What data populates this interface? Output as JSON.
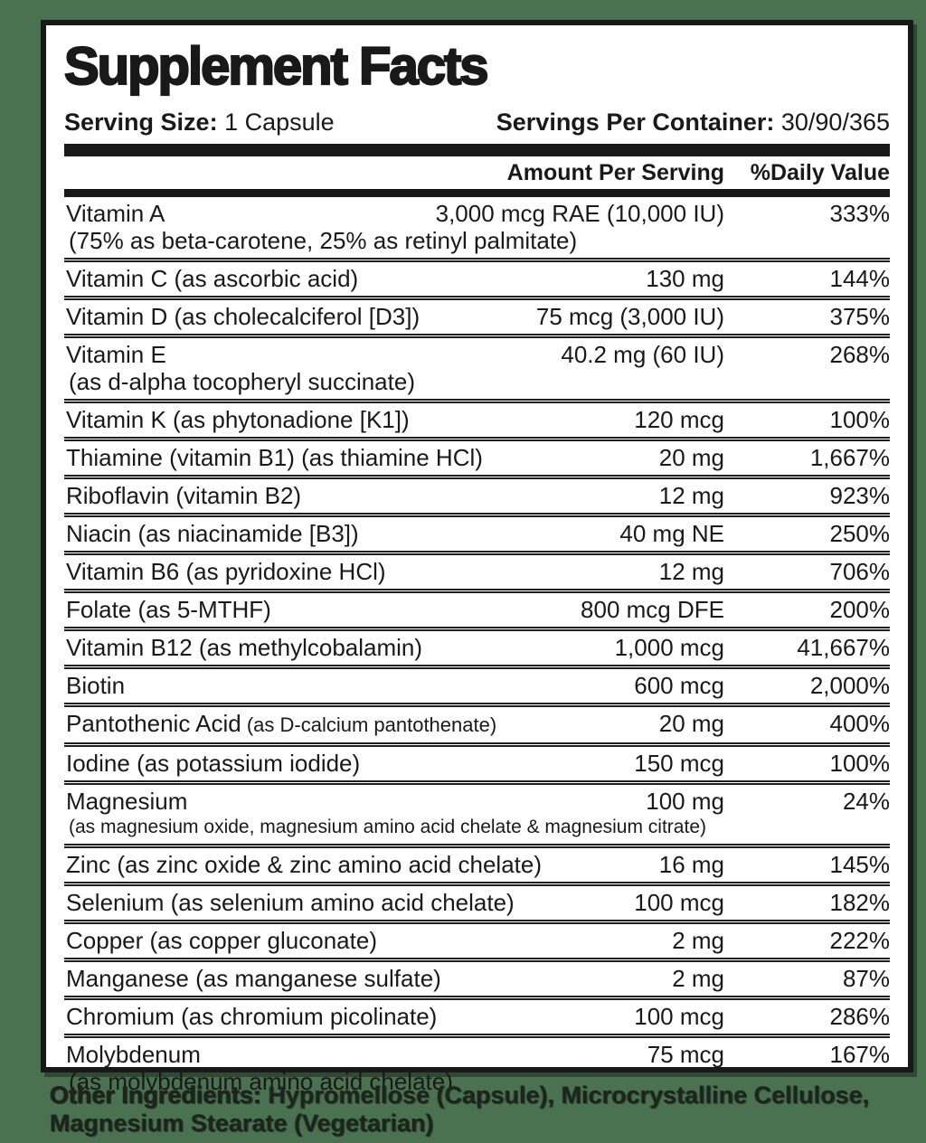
{
  "page": {
    "background_color": "#4a7251",
    "panel_color": "#ffffff",
    "text_color": "#191919"
  },
  "panel": {
    "title": "Supplement Facts",
    "serving_size_label": "Serving Size:",
    "serving_size_value": "1 Capsule",
    "servings_label": "Servings Per Container:",
    "servings_value": "30/90/365",
    "col_amount_header": "Amount Per Serving",
    "col_dv_header": "%Daily Value",
    "rows": [
      {
        "name": "Vitamin A",
        "amount": "3,000 mcg RAE (10,000 IU)",
        "dv": "333%",
        "note": "(75% as beta-carotene, 25% as retinyl palmitate)"
      },
      {
        "name": "Vitamin C (as ascorbic acid)",
        "amount": "130 mg",
        "dv": "144%"
      },
      {
        "name": "Vitamin D (as cholecalciferol [D3])",
        "amount": "75 mcg (3,000 IU)",
        "dv": "375%"
      },
      {
        "name": "Vitamin E",
        "amount": "40.2 mg (60 IU)",
        "dv": "268%",
        "note": "(as d-alpha tocopheryl succinate)"
      },
      {
        "name": "Vitamin K (as phytonadione [K1])",
        "amount": "120 mcg",
        "dv": "100%"
      },
      {
        "name": "Thiamine (vitamin B1) (as thiamine HCl)",
        "amount": "20 mg",
        "dv": "1,667%"
      },
      {
        "name": "Riboflavin (vitamin B2)",
        "amount": "12 mg",
        "dv": "923%"
      },
      {
        "name": "Niacin (as niacinamide [B3])",
        "amount": "40 mg NE",
        "dv": "250%"
      },
      {
        "name": "Vitamin B6 (as pyridoxine HCl)",
        "amount": "12 mg",
        "dv": "706%"
      },
      {
        "name": "Folate (as 5-MTHF)",
        "amount": "800 mcg DFE",
        "dv": "200%"
      },
      {
        "name": "Vitamin B12 (as methylcobalamin)",
        "amount": "1,000 mcg",
        "dv": "41,667%"
      },
      {
        "name": "Biotin",
        "amount": "600 mcg",
        "dv": "2,000%"
      },
      {
        "name": "Pantothenic Acid",
        "name_note": "(as D-calcium pantothenate)",
        "amount": "20 mg",
        "dv": "400%"
      },
      {
        "name": "Iodine (as potassium iodide)",
        "amount": "150 mcg",
        "dv": "100%"
      },
      {
        "name": "Magnesium",
        "amount": "100 mg",
        "dv": "24%",
        "note": "(as magnesium oxide, magnesium amino acid chelate & magnesium citrate)",
        "note_small": true
      },
      {
        "name": "Zinc (as zinc oxide & zinc amino acid chelate)",
        "amount": "16 mg",
        "dv": "145%"
      },
      {
        "name": "Selenium (as selenium amino acid chelate)",
        "amount": "100 mcg",
        "dv": "182%"
      },
      {
        "name": "Copper (as copper gluconate)",
        "amount": "2 mg",
        "dv": "222%"
      },
      {
        "name": "Manganese (as manganese sulfate)",
        "amount": "2 mg",
        "dv": "87%"
      },
      {
        "name": "Chromium (as chromium picolinate)",
        "amount": "100 mcg",
        "dv": "286%"
      },
      {
        "name": "Molybdenum",
        "amount": "75 mcg",
        "dv": "167%",
        "note": "(as molybdenum amino acid chelate)"
      }
    ]
  },
  "footer": {
    "other_ingredients_label": "Other Ingredients:",
    "other_ingredients_value": "Hypromellose (Capsule), Microcrystalline Cellulose, Magnesium Stearate (Vegetarian)"
  }
}
